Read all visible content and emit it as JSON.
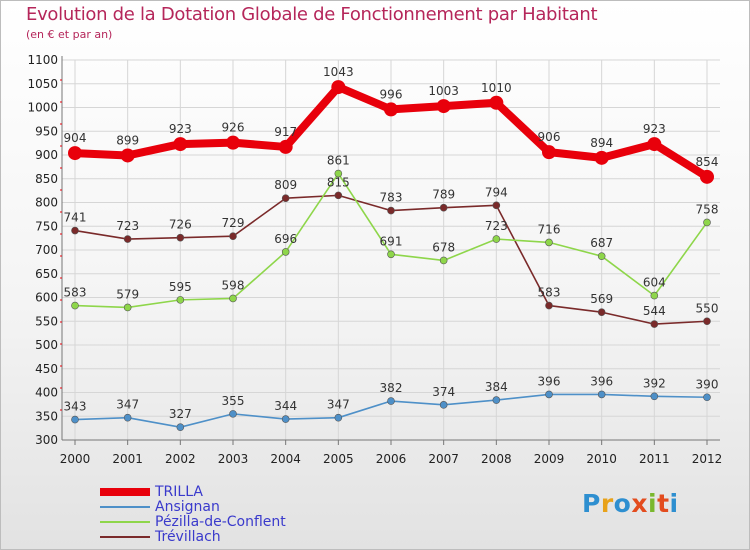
{
  "chart_data": {
    "type": "line",
    "title": "Evolution de la Dotation Globale de Fonctionnement par Habitant",
    "subtitle": "(en € et par an)",
    "categories": [
      "2000",
      "2001",
      "2002",
      "2003",
      "2004",
      "2005",
      "2006",
      "2007",
      "2008",
      "2009",
      "2010",
      "2011",
      "2012"
    ],
    "ylim": [
      300,
      1100
    ],
    "yticks": [
      300,
      350,
      400,
      450,
      500,
      550,
      600,
      650,
      700,
      750,
      800,
      850,
      900,
      950,
      1000,
      1050,
      1100
    ],
    "grid": true,
    "legend_position": "bottom-left",
    "series": [
      {
        "name": "TRILLA",
        "color": "#e8000b",
        "values": [
          904,
          899,
          923,
          926,
          917,
          1043,
          996,
          1003,
          1010,
          906,
          894,
          923,
          854
        ]
      },
      {
        "name": "Ansignan",
        "color": "#4e90c8",
        "values": [
          343,
          347,
          327,
          355,
          344,
          347,
          382,
          374,
          384,
          396,
          396,
          392,
          390
        ]
      },
      {
        "name": "Pézilla-de-Conflent",
        "color": "#8ed64a",
        "values": [
          583,
          579,
          595,
          598,
          696,
          861,
          691,
          678,
          723,
          716,
          687,
          604,
          758
        ]
      },
      {
        "name": "Trévillach",
        "color": "#7a2a2a",
        "values": [
          741,
          723,
          726,
          729,
          809,
          815,
          783,
          789,
          794,
          583,
          569,
          544,
          550
        ]
      }
    ]
  },
  "logo": {
    "letters": [
      "P",
      "r",
      "o",
      "x",
      "i",
      "t",
      "i"
    ]
  }
}
